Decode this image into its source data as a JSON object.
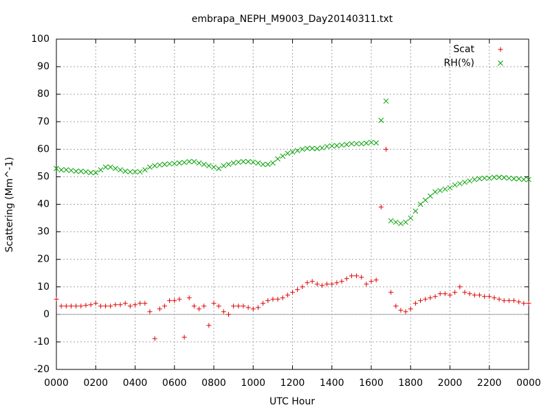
{
  "chart_data": {
    "type": "scatter",
    "title": "embrapa_NEPH_M9003_Day20140311.txt",
    "xlabel": "UTC Hour",
    "ylabel": "Scattering (Mm^-1)",
    "xlim": [
      0,
      24
    ],
    "xticks": [
      {
        "value": 0,
        "label": "0000"
      },
      {
        "value": 2,
        "label": "0200"
      },
      {
        "value": 4,
        "label": "0400"
      },
      {
        "value": 6,
        "label": "0600"
      },
      {
        "value": 8,
        "label": "0800"
      },
      {
        "value": 10,
        "label": "1000"
      },
      {
        "value": 12,
        "label": "1200"
      },
      {
        "value": 14,
        "label": "1400"
      },
      {
        "value": 16,
        "label": "1600"
      },
      {
        "value": 18,
        "label": "1800"
      },
      {
        "value": 20,
        "label": "2000"
      },
      {
        "value": 22,
        "label": "2200"
      },
      {
        "value": 24,
        "label": "0000"
      }
    ],
    "ylim": [
      -20,
      100
    ],
    "yticks": [
      -20,
      -10,
      0,
      10,
      20,
      30,
      40,
      50,
      60,
      70,
      80,
      90,
      100
    ],
    "grid": true,
    "legend": "upper right",
    "x": [
      0,
      0.25,
      0.5,
      0.75,
      1,
      1.25,
      1.5,
      1.75,
      2,
      2.25,
      2.5,
      2.75,
      3,
      3.25,
      3.5,
      3.75,
      4,
      4.25,
      4.5,
      4.75,
      5,
      5.25,
      5.5,
      5.75,
      6,
      6.25,
      6.5,
      6.75,
      7,
      7.25,
      7.5,
      7.75,
      8,
      8.25,
      8.5,
      8.75,
      9,
      9.25,
      9.5,
      9.75,
      10,
      10.25,
      10.5,
      10.75,
      11,
      11.25,
      11.5,
      11.75,
      12,
      12.25,
      12.5,
      12.75,
      13,
      13.25,
      13.5,
      13.75,
      14,
      14.25,
      14.5,
      14.75,
      15,
      15.25,
      15.5,
      15.75,
      16,
      16.25,
      16.5,
      16.75,
      17,
      17.25,
      17.5,
      17.75,
      18,
      18.25,
      18.5,
      18.75,
      19,
      19.25,
      19.5,
      19.75,
      20,
      20.25,
      20.5,
      20.75,
      21,
      21.25,
      21.5,
      21.75,
      22,
      22.25,
      22.5,
      22.75,
      23,
      23.25,
      23.5,
      23.75,
      24
    ],
    "series": [
      {
        "name": "Scat",
        "color": "#e00000",
        "marker": "+",
        "values": [
          5.5,
          3,
          3,
          3,
          3,
          3,
          3.3,
          3.5,
          4,
          3,
          3,
          3,
          3.5,
          3.5,
          4,
          3,
          3.5,
          4,
          4,
          1,
          -8.8,
          2,
          3,
          5,
          5,
          5.5,
          -8.3,
          6,
          3,
          2,
          3,
          -4,
          4,
          3,
          1,
          0,
          3,
          3,
          3,
          2.5,
          2,
          2.5,
          4,
          5,
          5.5,
          5.5,
          6,
          7,
          8,
          9,
          10,
          11.5,
          12,
          11,
          10.5,
          11,
          11,
          11.5,
          12,
          13,
          14,
          14,
          13.5,
          11,
          12,
          12.5,
          39,
          60,
          8,
          3,
          1.5,
          1,
          2,
          4,
          5,
          5.5,
          6,
          6.5,
          7.5,
          7.5,
          7,
          8,
          10,
          8,
          7.5,
          7,
          7,
          6.5,
          6.5,
          6,
          5.5,
          5,
          5,
          5,
          4.5,
          4,
          4
        ]
      },
      {
        "name": "RH(%)",
        "color": "#00a000",
        "marker": "x",
        "values": [
          53,
          52.5,
          52.5,
          52.3,
          52,
          52,
          51.8,
          51.5,
          51.5,
          52.5,
          53.5,
          53.5,
          53,
          52.5,
          52,
          51.8,
          51.8,
          51.8,
          52.5,
          53.5,
          54,
          54.3,
          54.5,
          54.7,
          54.8,
          55,
          55.2,
          55.5,
          55.5,
          55,
          54.5,
          54,
          53.5,
          53,
          54,
          54.5,
          55,
          55.3,
          55.5,
          55.5,
          55.3,
          55,
          54.5,
          54.5,
          55,
          56.5,
          57.5,
          58.5,
          59,
          59.5,
          60,
          60.3,
          60.3,
          60.2,
          60.5,
          61,
          61.2,
          61.3,
          61.5,
          61.7,
          62,
          62,
          62,
          62.2,
          62.5,
          62.3,
          70.5,
          77.5,
          34,
          33.5,
          33,
          33.5,
          35,
          37.5,
          40,
          41.5,
          43,
          44.5,
          45,
          45.5,
          46,
          47,
          47.5,
          48,
          48.5,
          49,
          49.3,
          49.5,
          49.5,
          49.8,
          49.8,
          49.7,
          49.5,
          49.3,
          49.3,
          49,
          49
        ]
      }
    ]
  }
}
